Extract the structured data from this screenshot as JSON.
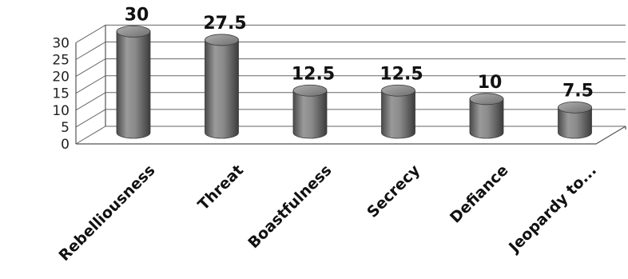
{
  "chart_data": {
    "type": "bar",
    "style": "3d-cylinder",
    "categories": [
      "Rebelliousness",
      "Threat",
      "Boastfulness",
      "Secrecy",
      "Defiance",
      "Jeopardy to..."
    ],
    "values": [
      30,
      27.5,
      12.5,
      12.5,
      10,
      7.5
    ],
    "data_labels": [
      "30",
      "27.5",
      "12.5",
      "12.5",
      "10",
      "7.5"
    ],
    "ylim": [
      0,
      30
    ],
    "yticks": [
      "0",
      "5",
      "10",
      "15",
      "20",
      "25",
      "30"
    ],
    "title": "",
    "xlabel": "",
    "ylabel": "",
    "grid": true,
    "legend": "none",
    "bar_color": "#808080"
  }
}
